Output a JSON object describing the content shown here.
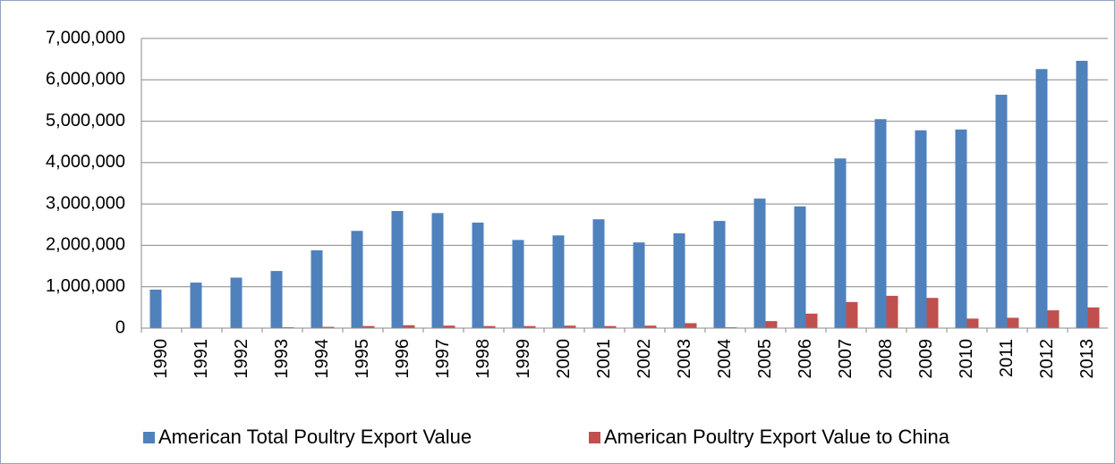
{
  "chart_data": {
    "type": "bar",
    "categories": [
      "1990",
      "1991",
      "1992",
      "1993",
      "1994",
      "1995",
      "1996",
      "1997",
      "1998",
      "1999",
      "2000",
      "2001",
      "2002",
      "2003",
      "2004",
      "2005",
      "2006",
      "2007",
      "2008",
      "2009",
      "2010",
      "2011",
      "2012",
      "2013"
    ],
    "series": [
      {
        "name": "American Total Poultry Export Value",
        "color": "#4f81bd",
        "values": [
          930000,
          1100000,
          1220000,
          1380000,
          1880000,
          2350000,
          2830000,
          2780000,
          2550000,
          2130000,
          2240000,
          2630000,
          2070000,
          2290000,
          2590000,
          3130000,
          2940000,
          4100000,
          5050000,
          4780000,
          4800000,
          5640000,
          6260000,
          6460000
        ]
      },
      {
        "name": "American Poultry Export Value to China",
        "color": "#c0504d",
        "values": [
          0,
          0,
          5000,
          20000,
          30000,
          50000,
          70000,
          60000,
          50000,
          50000,
          60000,
          50000,
          60000,
          120000,
          20000,
          170000,
          350000,
          630000,
          780000,
          730000,
          230000,
          250000,
          430000,
          500000
        ]
      }
    ],
    "ylim": [
      0,
      7000000
    ],
    "yticks": [
      0,
      {
        "value": 1000000,
        "label": "1,000,000"
      },
      {
        "value": 2000000,
        "label": "2,000,000"
      },
      {
        "value": 3000000,
        "label": "3,000,000"
      },
      {
        "value": 4000000,
        "label": "4,000,000"
      },
      {
        "value": 5000000,
        "label": "5,000,000"
      },
      {
        "value": 6000000,
        "label": "6,000,000"
      },
      {
        "value": 7000000,
        "label": "7,000,000"
      }
    ],
    "grid": true,
    "legend": "bottom"
  }
}
